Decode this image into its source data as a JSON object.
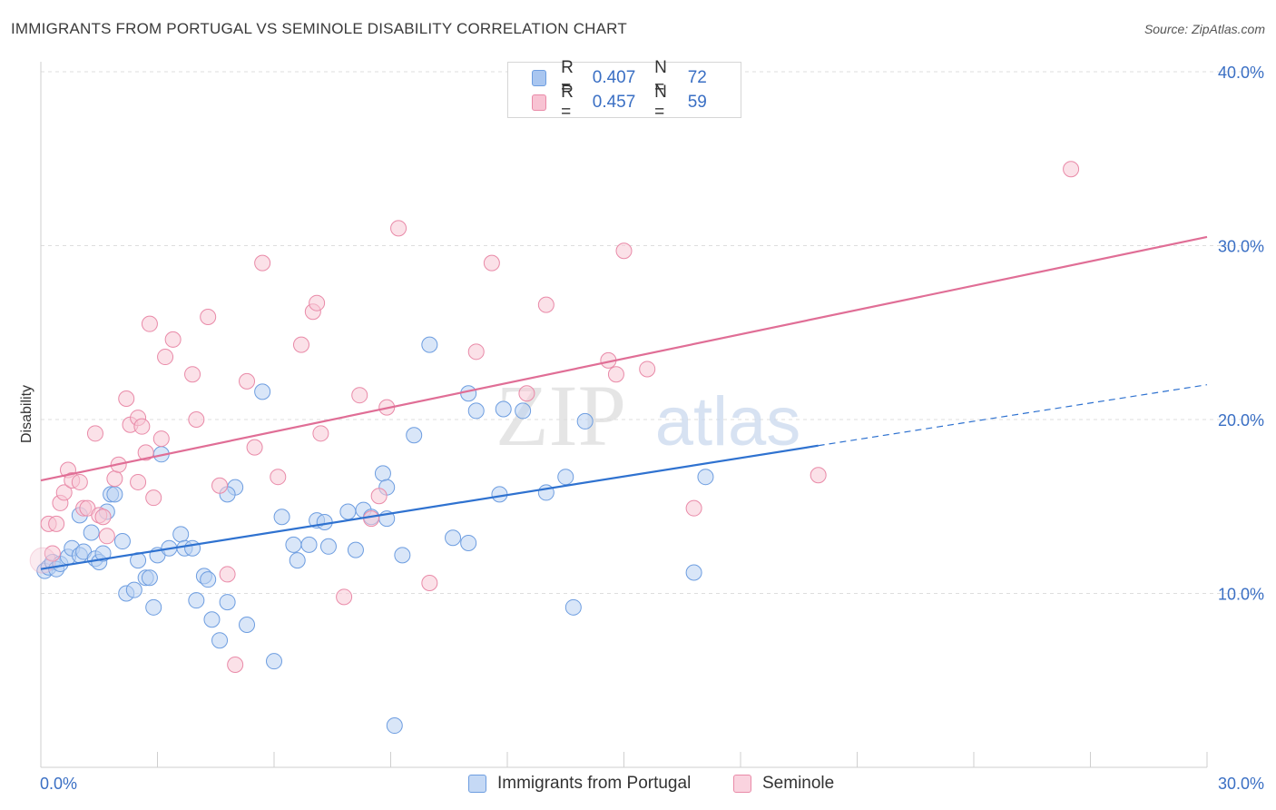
{
  "header": {
    "title": "IMMIGRANTS FROM PORTUGAL VS SEMINOLE DISABILITY CORRELATION CHART",
    "source": "Source: ZipAtlas.com"
  },
  "watermark": {
    "zip": "ZIP",
    "atlas": "atlas"
  },
  "legend": {
    "r_label": "R =",
    "n_label": "N =",
    "rows": [
      {
        "r": "0.407",
        "n": "72",
        "color": "#a9c6f0",
        "border": "#6d9de0"
      },
      {
        "r": "0.457",
        "n": "59",
        "color": "#f8c3d3",
        "border": "#e98aa8"
      }
    ]
  },
  "bottom_legend": [
    {
      "label": "Immigrants from Portugal",
      "color": "#c5d9f5",
      "border": "#6d9de0"
    },
    {
      "label": "Seminole",
      "color": "#fad3df",
      "border": "#e98aa8"
    }
  ],
  "chart_data": {
    "type": "scatter",
    "title": "IMMIGRANTS FROM PORTUGAL VS SEMINOLE DISABILITY CORRELATION CHART",
    "xlabel": "",
    "ylabel": "Disability",
    "xlim": [
      0,
      30
    ],
    "ylim": [
      0,
      40
    ],
    "x_tick_labels": [
      "0.0%",
      "30.0%"
    ],
    "y_ticks": [
      10,
      20,
      30,
      40
    ],
    "y_tick_labels": [
      "10.0%",
      "20.0%",
      "30.0%",
      "40.0%"
    ],
    "grid": "horizontal dashed",
    "legend_position": "top-center",
    "series": [
      {
        "name": "Immigrants from Portugal",
        "color": "#6d9de0",
        "fill": "#b9d1f3",
        "line_color": "#2f72d0",
        "trend": {
          "x0": 0,
          "y0": 11.4,
          "x1": 20,
          "y1": 18.5,
          "dash_x1": 30,
          "dash_y1": 22.0
        },
        "points": [
          [
            0.1,
            11.3
          ],
          [
            0.2,
            11.5
          ],
          [
            0.3,
            11.8
          ],
          [
            0.4,
            11.4
          ],
          [
            0.5,
            11.7
          ],
          [
            0.7,
            12.1
          ],
          [
            0.8,
            12.6
          ],
          [
            1.0,
            12.2
          ],
          [
            1.1,
            12.4
          ],
          [
            1.0,
            14.5
          ],
          [
            1.3,
            13.5
          ],
          [
            1.4,
            12.0
          ],
          [
            1.5,
            11.8
          ],
          [
            1.6,
            12.3
          ],
          [
            1.7,
            14.7
          ],
          [
            1.8,
            15.7
          ],
          [
            2.1,
            13.0
          ],
          [
            2.2,
            10.0
          ],
          [
            2.4,
            10.2
          ],
          [
            2.5,
            11.9
          ],
          [
            2.7,
            10.9
          ],
          [
            2.8,
            10.9
          ],
          [
            2.9,
            9.2
          ],
          [
            3.0,
            12.2
          ],
          [
            3.3,
            12.6
          ],
          [
            3.6,
            13.4
          ],
          [
            3.7,
            12.6
          ],
          [
            3.9,
            12.6
          ],
          [
            4.0,
            9.6
          ],
          [
            4.2,
            11.0
          ],
          [
            4.3,
            10.8
          ],
          [
            4.4,
            8.5
          ],
          [
            4.6,
            7.3
          ],
          [
            4.8,
            9.5
          ],
          [
            5.0,
            16.1
          ],
          [
            5.3,
            8.2
          ],
          [
            5.7,
            21.6
          ],
          [
            6.0,
            6.1
          ],
          [
            6.2,
            14.4
          ],
          [
            6.5,
            12.8
          ],
          [
            6.6,
            11.9
          ],
          [
            6.9,
            12.8
          ],
          [
            7.1,
            14.2
          ],
          [
            7.3,
            14.1
          ],
          [
            7.4,
            12.7
          ],
          [
            7.9,
            14.7
          ],
          [
            8.1,
            12.5
          ],
          [
            8.3,
            14.8
          ],
          [
            8.5,
            14.4
          ],
          [
            8.9,
            14.3
          ],
          [
            8.8,
            16.9
          ],
          [
            8.9,
            16.1
          ],
          [
            9.1,
            2.4
          ],
          [
            9.3,
            12.2
          ],
          [
            9.6,
            19.1
          ],
          [
            10.0,
            24.3
          ],
          [
            10.6,
            13.2
          ],
          [
            11.0,
            12.9
          ],
          [
            11.0,
            21.5
          ],
          [
            11.2,
            20.5
          ],
          [
            11.8,
            15.7
          ],
          [
            11.9,
            20.6
          ],
          [
            12.4,
            20.5
          ],
          [
            13.0,
            15.8
          ],
          [
            13.5,
            16.7
          ],
          [
            13.7,
            9.2
          ],
          [
            14.0,
            19.9
          ],
          [
            16.8,
            11.2
          ],
          [
            17.1,
            16.7
          ],
          [
            3.1,
            18.0
          ],
          [
            4.8,
            15.7
          ],
          [
            1.9,
            15.7
          ]
        ]
      },
      {
        "name": "Seminole",
        "color": "#e98aa8",
        "fill": "#f8c8d6",
        "line_color": "#e06e96",
        "trend": {
          "x0": 0,
          "y0": 16.5,
          "x1": 30,
          "y1": 30.5
        },
        "points": [
          [
            0.2,
            14.0
          ],
          [
            0.4,
            14.0
          ],
          [
            0.5,
            15.2
          ],
          [
            0.6,
            15.8
          ],
          [
            0.7,
            17.1
          ],
          [
            0.8,
            16.5
          ],
          [
            1.0,
            16.4
          ],
          [
            1.1,
            14.9
          ],
          [
            1.2,
            14.9
          ],
          [
            1.4,
            19.2
          ],
          [
            1.5,
            14.5
          ],
          [
            1.7,
            13.3
          ],
          [
            1.9,
            16.6
          ],
          [
            2.0,
            17.4
          ],
          [
            2.2,
            21.2
          ],
          [
            2.3,
            19.7
          ],
          [
            2.5,
            20.1
          ],
          [
            2.6,
            19.6
          ],
          [
            2.7,
            18.1
          ],
          [
            2.8,
            25.5
          ],
          [
            2.9,
            15.5
          ],
          [
            3.1,
            18.9
          ],
          [
            3.2,
            23.6
          ],
          [
            3.4,
            24.6
          ],
          [
            3.9,
            22.6
          ],
          [
            4.0,
            20.0
          ],
          [
            4.3,
            25.9
          ],
          [
            4.6,
            16.2
          ],
          [
            4.8,
            11.1
          ],
          [
            5.0,
            5.9
          ],
          [
            5.3,
            22.2
          ],
          [
            5.5,
            18.4
          ],
          [
            5.7,
            29.0
          ],
          [
            6.1,
            16.7
          ],
          [
            6.7,
            24.3
          ],
          [
            7.0,
            26.2
          ],
          [
            7.1,
            26.7
          ],
          [
            7.2,
            19.2
          ],
          [
            7.8,
            9.8
          ],
          [
            8.2,
            21.4
          ],
          [
            8.5,
            14.3
          ],
          [
            8.7,
            15.6
          ],
          [
            8.9,
            20.7
          ],
          [
            9.2,
            31.0
          ],
          [
            10.0,
            10.6
          ],
          [
            11.2,
            23.9
          ],
          [
            11.6,
            29.0
          ],
          [
            12.5,
            21.5
          ],
          [
            13.0,
            26.6
          ],
          [
            14.6,
            23.4
          ],
          [
            14.8,
            22.6
          ],
          [
            15.0,
            29.7
          ],
          [
            15.6,
            22.9
          ],
          [
            16.8,
            14.9
          ],
          [
            20.0,
            16.8
          ],
          [
            26.5,
            34.4
          ],
          [
            0.3,
            12.3
          ],
          [
            1.6,
            14.4
          ],
          [
            2.5,
            16.4
          ]
        ]
      }
    ]
  }
}
